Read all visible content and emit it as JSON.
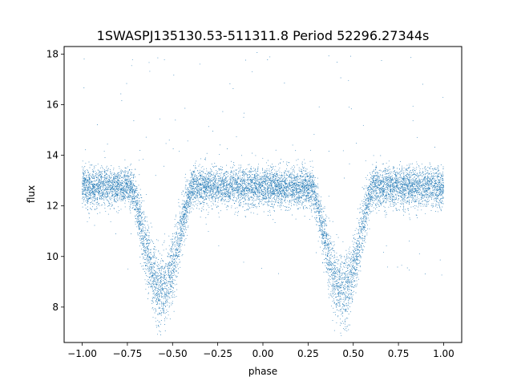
{
  "chart_data": {
    "type": "scatter",
    "title": "1SWASPJ135130.53-511311.8 Period 52296.27344s",
    "xlabel": "phase",
    "ylabel": "flux",
    "xlim": [
      -1.1,
      1.1
    ],
    "ylim": [
      6.6,
      18.3
    ],
    "xticks": [
      -1.0,
      -0.75,
      -0.5,
      -0.25,
      0.0,
      0.25,
      0.5,
      0.75,
      1.0
    ],
    "xtick_labels": [
      "−1.00",
      "−0.75",
      "−0.50",
      "−0.25",
      "0.00",
      "0.25",
      "0.50",
      "0.75",
      "1.00"
    ],
    "yticks": [
      8,
      10,
      12,
      14,
      16,
      18
    ],
    "ytick_labels": [
      "8",
      "10",
      "12",
      "14",
      "16",
      "18"
    ],
    "grid": false,
    "marker_color": "#1f77b4",
    "series": [
      {
        "phase_range": [
          -1.0,
          1.0
        ],
        "baseline_flux": 12.75,
        "eclipse_centers": [
          -0.56,
          0.44
        ],
        "eclipse_minimum_flux": 8.7,
        "eclipse_half_width": 0.17,
        "n_points": 11000
      }
    ]
  }
}
